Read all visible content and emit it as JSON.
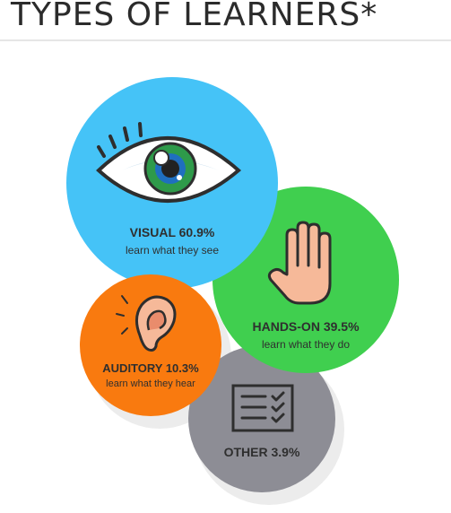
{
  "title": "TYPES OF LEARNERS*",
  "colors": {
    "visual": "#45c3f7",
    "hands_on": "#40cf4f",
    "auditory": "#f97a0f",
    "other": "#8d8d95",
    "shadow": "#ececec"
  },
  "segments": [
    {
      "id": "visual",
      "heading": "VISUAL 60.9%",
      "description": "learn what they see",
      "percent": 60.9,
      "icon": "eye-icon"
    },
    {
      "id": "hands_on",
      "heading": "HANDS-ON 39.5%",
      "description": "learn what they do",
      "percent": 39.5,
      "icon": "hand-icon"
    },
    {
      "id": "auditory",
      "heading": "AUDITORY 10.3%",
      "description": "learn what they hear",
      "percent": 10.3,
      "icon": "ear-icon"
    },
    {
      "id": "other",
      "heading": "OTHER 3.9%",
      "percent": 3.9,
      "icon": "checklist-icon"
    }
  ]
}
